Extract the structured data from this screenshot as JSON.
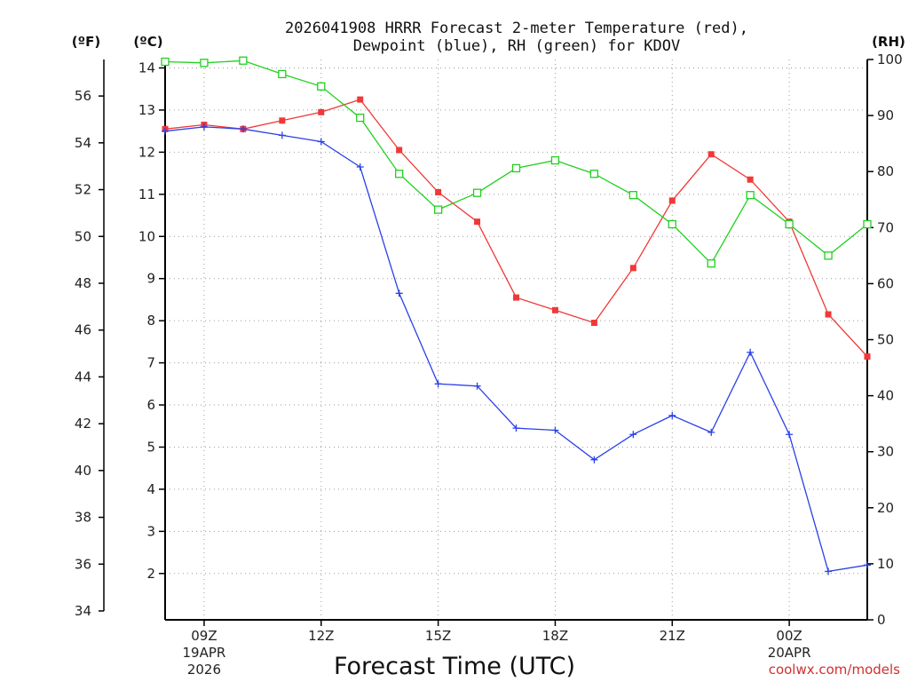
{
  "chart_data": {
    "type": "line",
    "title_line1": "2026041908 HRRR Forecast 2-meter Temperature (red),",
    "title_line2": "Dewpoint (blue), RH (green) for KDOV",
    "xlabel": "Forecast Time (UTC)",
    "credit": "coolwx.com/models",
    "units": {
      "fahrenheit": "(ºF)",
      "celsius": "(ºC)",
      "rh": "(RH)"
    },
    "x_hours": [
      8,
      9,
      10,
      11,
      12,
      13,
      14,
      15,
      16,
      17,
      18,
      19,
      20,
      21,
      22,
      23,
      24,
      25,
      26
    ],
    "xlim": [
      8,
      26
    ],
    "x_ticks": [
      {
        "hour": 9,
        "label": "09Z",
        "date": "19APR",
        "year": "2026"
      },
      {
        "hour": 12,
        "label": "12Z"
      },
      {
        "hour": 15,
        "label": "15Z"
      },
      {
        "hour": 18,
        "label": "18Z"
      },
      {
        "hour": 21,
        "label": "21Z"
      },
      {
        "hour": 24,
        "label": "00Z",
        "date": "20APR"
      }
    ],
    "celsius_axis": {
      "range": [
        0.9,
        14.2
      ],
      "ticks": [
        2,
        3,
        4,
        5,
        6,
        7,
        8,
        9,
        10,
        11,
        12,
        13,
        14
      ]
    },
    "fahrenheit_ticks": [
      34,
      36,
      38,
      40,
      42,
      44,
      46,
      48,
      50,
      52,
      54,
      56
    ],
    "rh_axis": {
      "range": [
        0,
        100
      ],
      "ticks": [
        0,
        10,
        20,
        30,
        40,
        50,
        60,
        70,
        80,
        90,
        100
      ]
    },
    "series": [
      {
        "name": "Temperature",
        "units": "C",
        "color": "#f03838",
        "marker": "filled-square",
        "values": [
          12.55,
          12.65,
          12.55,
          12.75,
          12.95,
          13.25,
          12.05,
          11.05,
          10.35,
          8.55,
          8.25,
          7.95,
          9.25,
          10.85,
          11.95,
          11.35,
          10.35,
          8.15,
          7.15
        ]
      },
      {
        "name": "Dewpoint",
        "units": "C",
        "color": "#2a40e8",
        "marker": "plus",
        "values": [
          12.5,
          12.6,
          12.55,
          12.4,
          12.25,
          11.65,
          8.65,
          6.5,
          6.45,
          5.45,
          5.4,
          4.7,
          5.3,
          5.75,
          5.35,
          7.25,
          5.3,
          2.05,
          2.2
        ]
      },
      {
        "name": "RH",
        "units": "%",
        "color": "#20d020",
        "marker": "open-square",
        "values": [
          99.6,
          99.4,
          99.8,
          97.4,
          95.2,
          89.6,
          79.6,
          73.2,
          76.2,
          80.6,
          82.0,
          79.6,
          75.8,
          70.6,
          63.6,
          75.8,
          70.6,
          65.0,
          70.6
        ]
      }
    ],
    "grid": true
  }
}
